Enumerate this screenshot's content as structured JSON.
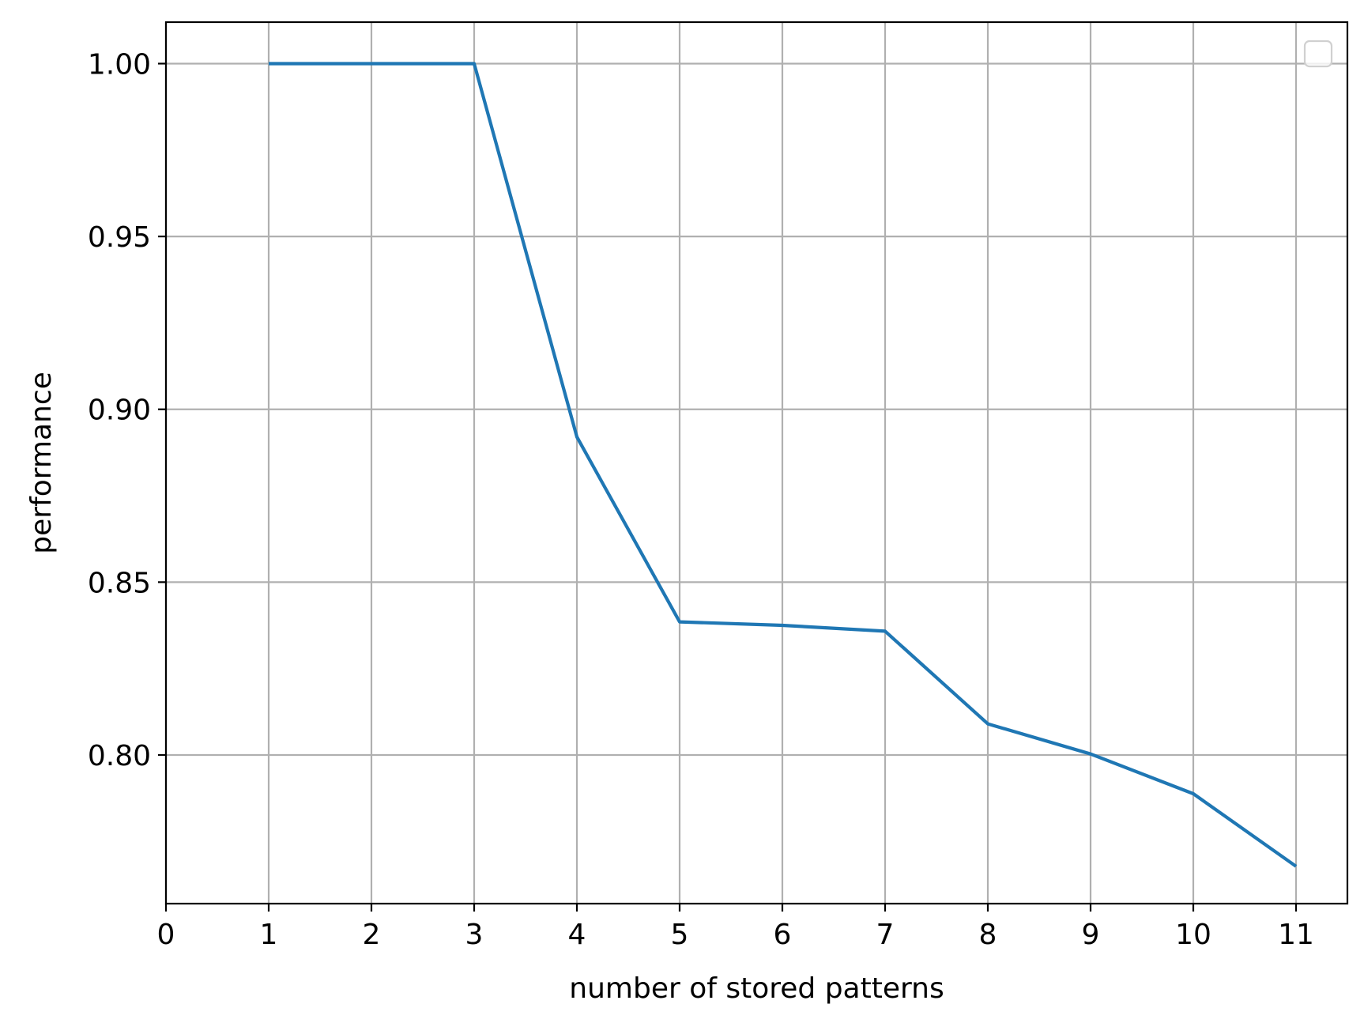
{
  "chart_data": {
    "type": "line",
    "title": "",
    "xlabel": "number of stored patterns",
    "ylabel": "performance",
    "xlim": [
      0,
      11.5
    ],
    "ylim": [
      0.757,
      1.012
    ],
    "xticks": [
      0,
      1,
      2,
      3,
      4,
      5,
      6,
      7,
      8,
      9,
      10,
      11
    ],
    "xtick_labels": [
      "0",
      "1",
      "2",
      "3",
      "4",
      "5",
      "6",
      "7",
      "8",
      "9",
      "10",
      "11"
    ],
    "yticks": [
      0.8,
      0.85,
      0.9,
      0.95,
      1.0
    ],
    "ytick_labels": [
      "0.80",
      "0.85",
      "0.90",
      "0.95",
      "1.00"
    ],
    "grid": true,
    "legend": "top-right (empty)",
    "series": [
      {
        "color": "#1f77b4",
        "x": [
          1,
          2,
          3,
          4,
          5,
          6,
          7,
          8,
          9,
          10,
          11
        ],
        "y": [
          1.0,
          1.0,
          1.0,
          0.892,
          0.8385,
          0.8375,
          0.8358,
          0.809,
          0.8003,
          0.7888,
          0.7678
        ]
      }
    ]
  }
}
